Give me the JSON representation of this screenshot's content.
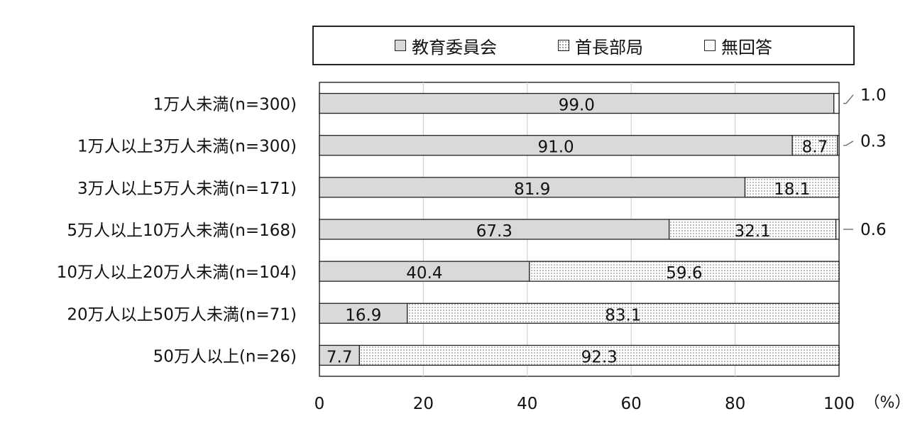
{
  "chart_data": {
    "type": "bar",
    "orientation": "horizontal",
    "stacked": true,
    "categories": [
      "1万人未満(n=300)",
      "1万人以上3万人未満(n=300)",
      "3万人以上5万人未満(n=171)",
      "5万人以上10万人未満(n=168)",
      "10万人以上20万人未満(n=104)",
      "20万人以上50万人未満(n=71)",
      "50万人以上(n=26)"
    ],
    "series": [
      {
        "name": "教育委員会",
        "values": [
          99.0,
          91.0,
          81.9,
          67.3,
          40.4,
          16.9,
          7.7
        ],
        "color": "#d9d9d9",
        "pattern": "solid"
      },
      {
        "name": "首長部局",
        "values": [
          0.0,
          8.7,
          18.1,
          32.1,
          59.6,
          83.1,
          92.3
        ],
        "color": "#ffffff",
        "pattern": "dots"
      },
      {
        "name": "無回答",
        "values": [
          1.0,
          0.3,
          0.0,
          0.6,
          0.0,
          0.0,
          0.0
        ],
        "color": "#ffffff",
        "pattern": "solid"
      }
    ],
    "data_labels": [
      {
        "category": 0,
        "series": 0,
        "text": "99.0"
      },
      {
        "category": 0,
        "series": 2,
        "text": "1.0",
        "callout": true
      },
      {
        "category": 1,
        "series": 0,
        "text": "91.0"
      },
      {
        "category": 1,
        "series": 1,
        "text": "8.7"
      },
      {
        "category": 1,
        "series": 2,
        "text": "0.3",
        "callout": true
      },
      {
        "category": 2,
        "series": 0,
        "text": "81.9"
      },
      {
        "category": 2,
        "series": 1,
        "text": "18.1"
      },
      {
        "category": 3,
        "series": 0,
        "text": "67.3"
      },
      {
        "category": 3,
        "series": 1,
        "text": "32.1"
      },
      {
        "category": 3,
        "series": 2,
        "text": "0.6",
        "callout": true
      },
      {
        "category": 4,
        "series": 0,
        "text": "40.4"
      },
      {
        "category": 4,
        "series": 1,
        "text": "59.6"
      },
      {
        "category": 5,
        "series": 0,
        "text": "16.9"
      },
      {
        "category": 5,
        "series": 1,
        "text": "83.1"
      },
      {
        "category": 6,
        "series": 0,
        "text": "7.7"
      },
      {
        "category": 6,
        "series": 1,
        "text": "92.3"
      }
    ],
    "xlim": [
      0,
      100
    ],
    "xticks": [
      "0",
      "20",
      "40",
      "60",
      "80",
      "100"
    ],
    "x_unit": "（%）",
    "grid": true,
    "legend_position": "top"
  }
}
